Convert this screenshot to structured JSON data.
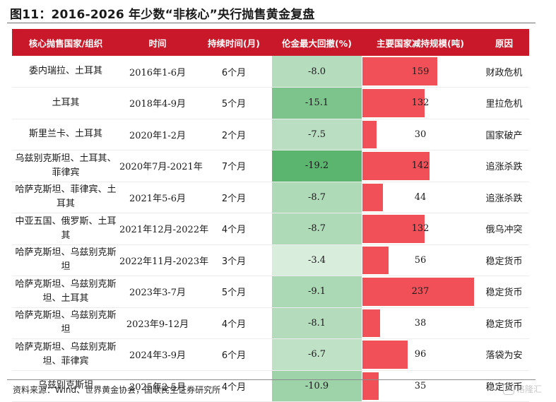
{
  "title": "图11：2016-2026 年少数“非核心”央行抛售黄金复盘",
  "headers": [
    "核心抛售国家/组织",
    "时间",
    "持续时间(月)",
    "伦金最大回撤(%)",
    "主要国家减持规模(吨)",
    "原因"
  ],
  "colors": {
    "header_bg": "#c8182a",
    "bar": "#f25059",
    "heat_dark": "#5cb56f",
    "heat_light": "#f4f9f5"
  },
  "table": {
    "type": "table",
    "rows": [
      {
        "name": "委内瑞拉、土耳其",
        "time": "2016年1-6月",
        "duration": "6个月",
        "drawdown": -8.0,
        "drawdown_label": "-8.0",
        "amount": 159,
        "reason": "财政危机"
      },
      {
        "name": "土耳其",
        "time": "2018年4-9月",
        "duration": "5个月",
        "drawdown": -15.1,
        "drawdown_label": "-15.1",
        "amount": 132,
        "reason": "里拉危机"
      },
      {
        "name": "斯里兰卡、土耳其",
        "time": "2020年1-2月",
        "duration": "2个月",
        "drawdown": -7.5,
        "drawdown_label": "-7.5",
        "amount": 30,
        "reason": "国家破产"
      },
      {
        "name": "乌兹别克斯坦、土耳其、菲律宾",
        "time": "2020年7月-2021年",
        "duration": "7个月",
        "drawdown": -19.2,
        "drawdown_label": "-19.2",
        "amount": 142,
        "reason": "追涨杀跌"
      },
      {
        "name": "哈萨克斯坦、菲律宾、土耳其",
        "time": "2021年5-6月",
        "duration": "2个月",
        "drawdown": -8.7,
        "drawdown_label": "-8.7",
        "amount": 44,
        "reason": "追涨杀跌"
      },
      {
        "name": "中亚五国、俄罗斯、土耳其",
        "time": "2021年12月-2022年",
        "duration": "4个月",
        "drawdown": -8.7,
        "drawdown_label": "-8.7",
        "amount": 132,
        "reason": "俄乌冲突"
      },
      {
        "name": "哈萨克斯坦、乌兹别克斯坦",
        "time": "2022年11月-2023年",
        "duration": "3个月",
        "drawdown": -3.4,
        "drawdown_label": "-3.4",
        "amount": 56,
        "reason": "稳定货币"
      },
      {
        "name": "哈萨克斯坦、乌兹别克斯坦、土耳其",
        "time": "2023年3-7月",
        "duration": "5个月",
        "drawdown": -9.1,
        "drawdown_label": "-9.1",
        "amount": 237,
        "reason": "稳定货币"
      },
      {
        "name": "哈萨克斯坦、乌兹别克斯坦",
        "time": "2023年9-12月",
        "duration": "4个月",
        "drawdown": -8.1,
        "drawdown_label": "-8.1",
        "amount": 38,
        "reason": "稳定货币"
      },
      {
        "name": "哈萨克斯坦、乌兹别克斯坦、菲律宾",
        "time": "2024年3-9月",
        "duration": "6个月",
        "drawdown": -6.7,
        "drawdown_label": "-6.7",
        "amount": 96,
        "reason": "落袋为安"
      },
      {
        "name": "乌兹别克斯坦",
        "time": "2025年2-5月",
        "duration": "4个月",
        "drawdown": -10.9,
        "drawdown_label": "-10.9",
        "amount": 35,
        "reason": "稳定货币"
      }
    ]
  },
  "source": "资料来源：Wind、世界黄金协会，国联民生证券研究所",
  "watermark": "格隆汇"
}
